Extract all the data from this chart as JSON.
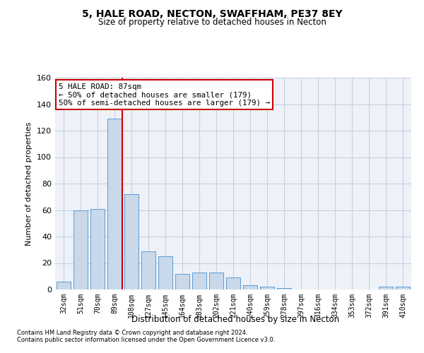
{
  "title1": "5, HALE ROAD, NECTON, SWAFFHAM, PE37 8EY",
  "title2": "Size of property relative to detached houses in Necton",
  "xlabel": "Distribution of detached houses by size in Necton",
  "ylabel": "Number of detached properties",
  "bar_labels": [
    "32sqm",
    "51sqm",
    "70sqm",
    "89sqm",
    "108sqm",
    "127sqm",
    "145sqm",
    "164sqm",
    "183sqm",
    "202sqm",
    "221sqm",
    "240sqm",
    "259sqm",
    "278sqm",
    "297sqm",
    "316sqm",
    "334sqm",
    "353sqm",
    "372sqm",
    "391sqm",
    "410sqm"
  ],
  "bar_values": [
    6,
    60,
    61,
    129,
    72,
    29,
    25,
    12,
    13,
    13,
    9,
    3,
    2,
    1,
    0,
    0,
    0,
    0,
    0,
    2,
    2
  ],
  "bar_color": "#c9d9ea",
  "bar_edgecolor": "#5b9bd5",
  "vline_x_index": 3,
  "vline_color": "#cc0000",
  "annotation_text": "5 HALE ROAD: 87sqm\n← 50% of detached houses are smaller (179)\n50% of semi-detached houses are larger (179) →",
  "annotation_box_color": "#ffffff",
  "annotation_box_edgecolor": "#cc0000",
  "ylim": [
    0,
    160
  ],
  "yticks": [
    0,
    20,
    40,
    60,
    80,
    100,
    120,
    140,
    160
  ],
  "grid_color": "#c8d0de",
  "bg_color": "#eef2f8",
  "footer1": "Contains HM Land Registry data © Crown copyright and database right 2024.",
  "footer2": "Contains public sector information licensed under the Open Government Licence v3.0."
}
